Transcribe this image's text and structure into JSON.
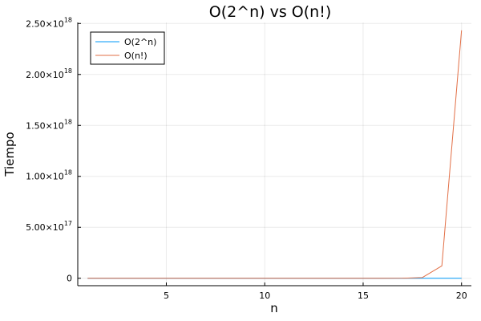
{
  "chart_data": {
    "type": "line",
    "title": "O(2^n) vs O(n!)",
    "xlabel": "n",
    "ylabel": "Tiempo",
    "xlim": [
      0.5,
      20.5
    ],
    "ylim": [
      -7.3e+16,
      2.51e+18
    ],
    "x_ticks": [
      5,
      10,
      15,
      20
    ],
    "y_ticks": [
      {
        "value": 0,
        "mantissa": "0",
        "exponent": ""
      },
      {
        "value": 5e+17,
        "mantissa": "5.00×10",
        "exponent": "17"
      },
      {
        "value": 1e+18,
        "mantissa": "1.00×10",
        "exponent": "18"
      },
      {
        "value": 1.5e+18,
        "mantissa": "1.50×10",
        "exponent": "18"
      },
      {
        "value": 2e+18,
        "mantissa": "2.00×10",
        "exponent": "18"
      },
      {
        "value": 2.5e+18,
        "mantissa": "2.50×10",
        "exponent": "18"
      }
    ],
    "grid": true,
    "legend_position": "top-left",
    "x": [
      1,
      2,
      3,
      4,
      5,
      6,
      7,
      8,
      9,
      10,
      11,
      12,
      13,
      14,
      15,
      16,
      17,
      18,
      19,
      20
    ],
    "series": [
      {
        "name": "O(2^n)",
        "color": "#009af9",
        "values": [
          2,
          4,
          8,
          16,
          32,
          64,
          128,
          256,
          512,
          1024,
          2048,
          4096,
          8192,
          16384,
          32768,
          65536,
          131072,
          262144,
          524288,
          1048576
        ]
      },
      {
        "name": "O(n!)",
        "color": "#e26f46",
        "values": [
          1,
          2,
          6,
          24,
          120,
          720,
          5040,
          40320,
          362880,
          3628800,
          39916800,
          479001600,
          6227020800,
          87178291200,
          1307674368000,
          20922789888000,
          355687428096000,
          6402373705728000,
          121645100408832000,
          2432902008176640000
        ]
      }
    ]
  }
}
